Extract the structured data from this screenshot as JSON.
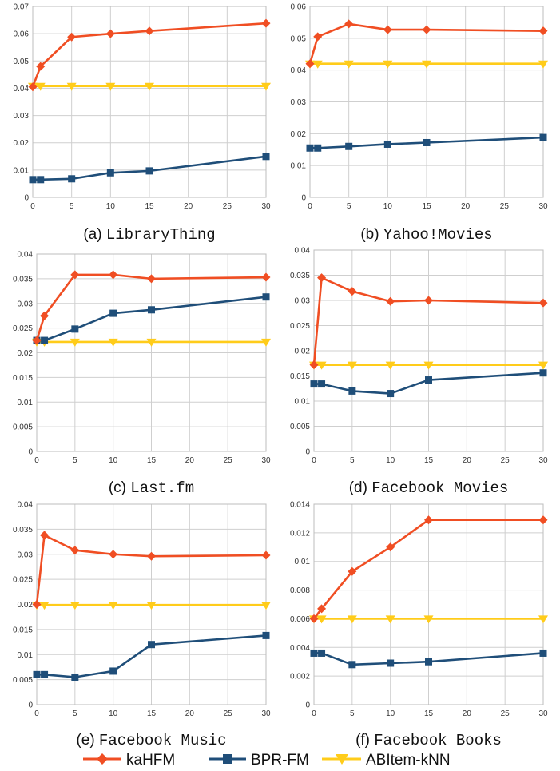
{
  "series_styles": [
    {
      "name": "kaHFM",
      "color": "#f04e23",
      "marker": "diamond"
    },
    {
      "name": "BPR-FM",
      "color": "#1f4e79",
      "marker": "square"
    },
    {
      "name": "ABItem-kNN",
      "color": "#ffcc1a",
      "marker": "triangle-down"
    }
  ],
  "chart_data": [
    {
      "type": "line",
      "caption_letter": "(a)",
      "caption_name": "LibraryThing",
      "x": [
        0,
        1,
        5,
        10,
        15,
        30
      ],
      "xlim": [
        0,
        30
      ],
      "xticks": [
        0,
        5,
        10,
        15,
        20,
        25,
        30
      ],
      "ylim": [
        0,
        0.07
      ],
      "yticks": [
        "0",
        "0.01",
        "0.02",
        "0.03",
        "0.04",
        "0.05",
        "0.06",
        "0.07"
      ],
      "grid": true,
      "series": [
        {
          "name": "kaHFM",
          "values": [
            0.0405,
            0.048,
            0.0588,
            0.06,
            0.061,
            0.0638
          ]
        },
        {
          "name": "BPR-FM",
          "values": [
            0.0065,
            0.0065,
            0.0068,
            0.009,
            0.0097,
            0.015
          ]
        },
        {
          "name": "ABItem-kNN",
          "values": [
            0.0408,
            0.0408,
            0.0408,
            0.0408,
            0.0408,
            0.0408
          ]
        }
      ]
    },
    {
      "type": "line",
      "caption_letter": "(b)",
      "caption_name": "Yahoo!Movies",
      "x": [
        0,
        1,
        5,
        10,
        15,
        30
      ],
      "xlim": [
        0,
        30
      ],
      "xticks": [
        0,
        5,
        10,
        15,
        20,
        25,
        30
      ],
      "ylim": [
        0,
        0.06
      ],
      "yticks": [
        "0",
        "0.01",
        "0.02",
        "0.03",
        "0.04",
        "0.05",
        "0.06"
      ],
      "grid": true,
      "series": [
        {
          "name": "kaHFM",
          "values": [
            0.042,
            0.0505,
            0.0545,
            0.0527,
            0.0527,
            0.0523
          ]
        },
        {
          "name": "BPR-FM",
          "values": [
            0.0155,
            0.0155,
            0.016,
            0.0167,
            0.0172,
            0.0188
          ]
        },
        {
          "name": "ABItem-kNN",
          "values": [
            0.042,
            0.042,
            0.042,
            0.042,
            0.042,
            0.042
          ]
        }
      ]
    },
    {
      "type": "line",
      "caption_letter": "(c)",
      "caption_name": "Last.fm",
      "x": [
        0,
        1,
        5,
        10,
        15,
        30
      ],
      "xlim": [
        0,
        30
      ],
      "xticks": [
        0,
        5,
        10,
        15,
        20,
        25,
        30
      ],
      "ylim": [
        0,
        0.04
      ],
      "yticks": [
        "0",
        "0.005",
        "0.01",
        "0.015",
        "0.02",
        "0.025",
        "0.03",
        "0.035",
        "0.04"
      ],
      "grid": true,
      "series": [
        {
          "name": "kaHFM",
          "values": [
            0.0225,
            0.0275,
            0.0358,
            0.0358,
            0.035,
            0.0353
          ]
        },
        {
          "name": "BPR-FM",
          "values": [
            0.0225,
            0.0225,
            0.0248,
            0.028,
            0.0287,
            0.0313
          ]
        },
        {
          "name": "ABItem-kNN",
          "values": [
            0.0222,
            0.0222,
            0.0222,
            0.0222,
            0.0222,
            0.0222
          ]
        }
      ]
    },
    {
      "type": "line",
      "caption_letter": "(d)",
      "caption_name": "Facebook Movies",
      "x": [
        0,
        1,
        5,
        10,
        15,
        30
      ],
      "xlim": [
        0,
        30
      ],
      "xticks": [
        0,
        5,
        10,
        15,
        20,
        25,
        30
      ],
      "ylim": [
        0,
        0.04
      ],
      "yticks": [
        "0",
        "0.005",
        "0.01",
        "0.015",
        "0.02",
        "0.025",
        "0.03",
        "0.035",
        "0.04"
      ],
      "grid": true,
      "series": [
        {
          "name": "kaHFM",
          "values": [
            0.0172,
            0.0345,
            0.0318,
            0.0298,
            0.03,
            0.0295
          ]
        },
        {
          "name": "BPR-FM",
          "values": [
            0.0134,
            0.0134,
            0.012,
            0.0115,
            0.0142,
            0.0156
          ]
        },
        {
          "name": "ABItem-kNN",
          "values": [
            0.0172,
            0.0172,
            0.0172,
            0.0172,
            0.0172,
            0.0172
          ]
        }
      ]
    },
    {
      "type": "line",
      "caption_letter": "(e)",
      "caption_name": "Facebook Music",
      "x": [
        0,
        1,
        5,
        10,
        15,
        30
      ],
      "xlim": [
        0,
        30
      ],
      "xticks": [
        0,
        5,
        10,
        15,
        20,
        25,
        30
      ],
      "ylim": [
        0,
        0.04
      ],
      "yticks": [
        "0",
        "0.005",
        "0.01",
        "0.015",
        "0.02",
        "0.025",
        "0.03",
        "0.035",
        "0.04"
      ],
      "grid": true,
      "series": [
        {
          "name": "kaHFM",
          "values": [
            0.02,
            0.0338,
            0.0308,
            0.03,
            0.0296,
            0.0298
          ]
        },
        {
          "name": "BPR-FM",
          "values": [
            0.006,
            0.006,
            0.0055,
            0.0067,
            0.012,
            0.0138
          ]
        },
        {
          "name": "ABItem-kNN",
          "values": [
            0.0199,
            0.0199,
            0.0199,
            0.0199,
            0.0199,
            0.0199
          ]
        }
      ]
    },
    {
      "type": "line",
      "caption_letter": "(f)",
      "caption_name": "Facebook Books",
      "x": [
        0,
        1,
        5,
        10,
        15,
        30
      ],
      "xlim": [
        0,
        30
      ],
      "xticks": [
        0,
        5,
        10,
        15,
        20,
        25,
        30
      ],
      "ylim": [
        0,
        0.014
      ],
      "yticks": [
        "0",
        "0.002",
        "0.004",
        "0.006",
        "0.008",
        "0.01",
        "0.012",
        "0.014"
      ],
      "grid": true,
      "series": [
        {
          "name": "kaHFM",
          "values": [
            0.006,
            0.0067,
            0.0093,
            0.011,
            0.0129,
            0.0129
          ]
        },
        {
          "name": "BPR-FM",
          "values": [
            0.0036,
            0.0036,
            0.0028,
            0.0029,
            0.003,
            0.0036
          ]
        },
        {
          "name": "ABItem-kNN",
          "values": [
            0.006,
            0.006,
            0.006,
            0.006,
            0.006,
            0.006
          ]
        }
      ]
    }
  ],
  "legend": {
    "placement": "bottom",
    "items": [
      "kaHFM",
      "BPR-FM",
      "ABItem-kNN"
    ]
  }
}
